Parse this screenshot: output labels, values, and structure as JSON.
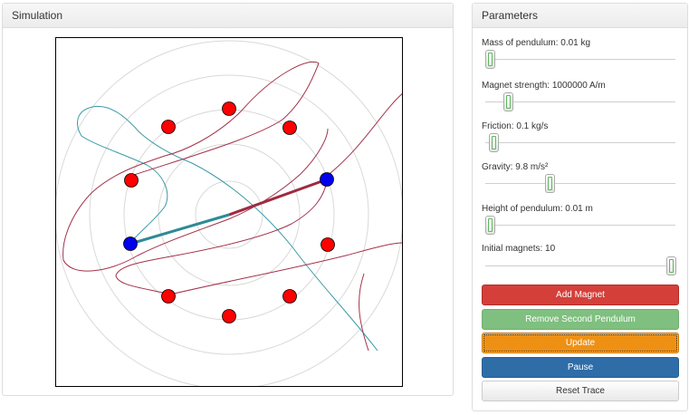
{
  "simulation": {
    "title": "Simulation"
  },
  "parameters": {
    "title": "Parameters",
    "sliders": [
      {
        "label": "Mass of pendulum: 0.01 kg",
        "fraction": 0.0
      },
      {
        "label": "Magnet strength: 1000000 A/m",
        "fraction": 0.1
      },
      {
        "label": "Friction: 0.1 kg/s",
        "fraction": 0.02
      },
      {
        "label": "Gravity: 9.8 m/s²",
        "fraction": 0.33
      },
      {
        "label": "Height of pendulum: 0.01 m",
        "fraction": 0.0
      },
      {
        "label": "Initial magnets: 10",
        "fraction": 1.0
      }
    ],
    "buttons": {
      "add_magnet": "Add Magnet",
      "remove_second_pendulum": "Remove Second Pendulum",
      "update": "Update",
      "pause": "Pause",
      "reset_trace": "Reset Trace"
    }
  },
  "colors": {
    "magnet": "#ff0000",
    "pendulum_bob": "#0000ee",
    "pendulum_a_trace": "#3a9aa6",
    "pendulum_b_trace": "#a3324a",
    "grid_circles": "#d9d9d9",
    "button_add": "#d43f3a",
    "button_remove": "#7fbf7f",
    "button_update": "#ee9014",
    "button_pause": "#2f6da8"
  }
}
